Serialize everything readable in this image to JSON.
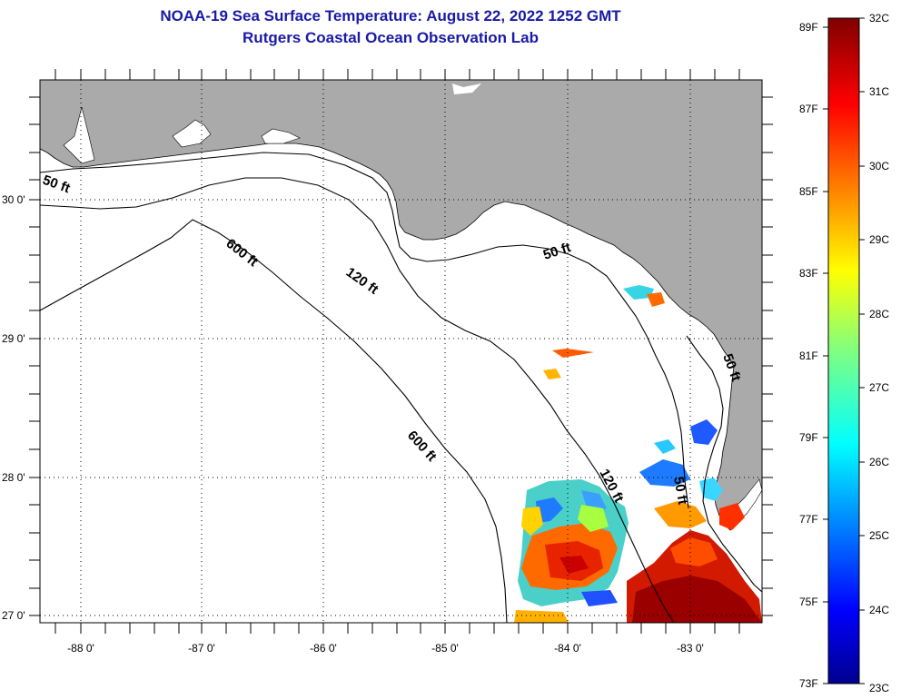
{
  "title": {
    "line1": "NOAA-19 Sea Surface Temperature:  August 22, 2022 1252 GMT",
    "line2": "Rutgers Coastal Ocean Observation Lab"
  },
  "map": {
    "lon_labels": [
      "-88 0'",
      "-87 0'",
      "-86 0'",
      "-85 0'",
      "-84 0'",
      "-83 0'"
    ],
    "lat_labels": [
      "30 0'",
      "29 0'",
      "28 0'",
      "27 0'"
    ],
    "lon_range": [
      -88.33,
      -82.4
    ],
    "lat_range": [
      26.93,
      30.86
    ],
    "contours": {
      "fifty": "50 ft",
      "onetwenty": "120 ft",
      "sixhundred": "600 ft"
    }
  },
  "colorbar": {
    "f_labels": [
      "89F",
      "87F",
      "85F",
      "83F",
      "81F",
      "79F",
      "77F",
      "75F",
      "73F"
    ],
    "c_labels": [
      "32C",
      "31C",
      "30C",
      "29C",
      "28C",
      "27C",
      "26C",
      "25C",
      "24C",
      "23C"
    ],
    "min_c": 23,
    "max_c": 32
  },
  "colors": {
    "title": "#1a1aa6",
    "land": "#aaaaaa",
    "water": "#ffffff"
  }
}
